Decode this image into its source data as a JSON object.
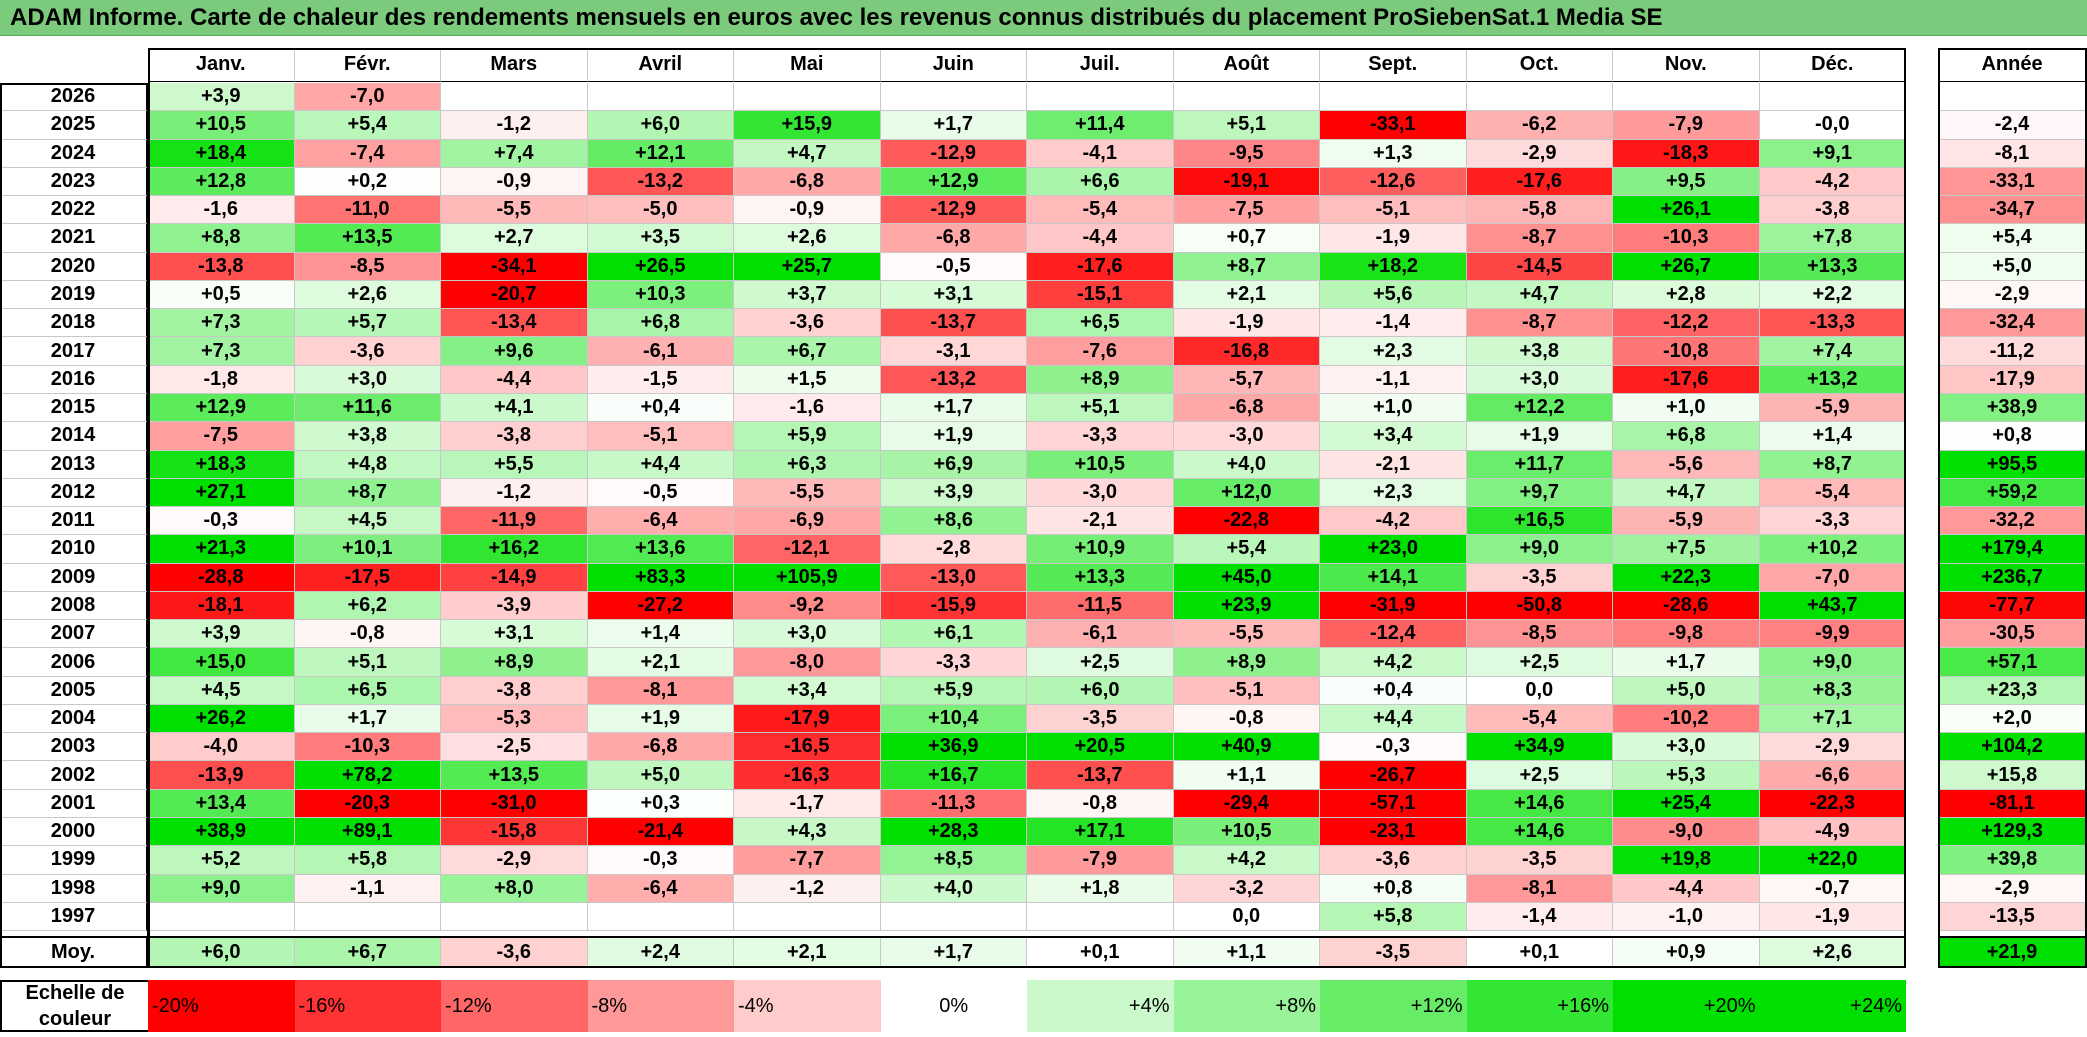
{
  "title": "ADAM Informe. Carte de chaleur des rendements mensuels en euros avec les revenus connus distribués du placement ProSiebenSat.1 Media SE",
  "chart_data": {
    "type": "heatmap",
    "title": "ADAM Informe. Carte de chaleur des rendements mensuels en euros avec les revenus connus distribués du placement ProSiebenSat.1 Media SE",
    "columns": [
      "Janv.",
      "Févr.",
      "Mars",
      "Avril",
      "Mai",
      "Juin",
      "Juil.",
      "Août",
      "Sept.",
      "Oct.",
      "Nov.",
      "Déc."
    ],
    "year_column": "Année",
    "rows": [
      {
        "year": "2026",
        "values": [
          "+3,9",
          "-7,0",
          "",
          "",
          "",
          "",
          "",
          "",
          "",
          "",
          "",
          ""
        ],
        "annual": ""
      },
      {
        "year": "2025",
        "values": [
          "+10,5",
          "+5,4",
          "-1,2",
          "+6,0",
          "+15,9",
          "+1,7",
          "+11,4",
          "+5,1",
          "-33,1",
          "-6,2",
          "-7,9",
          "-0,0"
        ],
        "annual": "-2,4"
      },
      {
        "year": "2024",
        "values": [
          "+18,4",
          "-7,4",
          "+7,4",
          "+12,1",
          "+4,7",
          "-12,9",
          "-4,1",
          "-9,5",
          "+1,3",
          "-2,9",
          "-18,3",
          "+9,1"
        ],
        "annual": "-8,1"
      },
      {
        "year": "2023",
        "values": [
          "+12,8",
          "+0,2",
          "-0,9",
          "-13,2",
          "-6,8",
          "+12,9",
          "+6,6",
          "-19,1",
          "-12,6",
          "-17,6",
          "+9,5",
          "-4,2"
        ],
        "annual": "-33,1"
      },
      {
        "year": "2022",
        "values": [
          "-1,6",
          "-11,0",
          "-5,5",
          "-5,0",
          "-0,9",
          "-12,9",
          "-5,4",
          "-7,5",
          "-5,1",
          "-5,8",
          "+26,1",
          "-3,8"
        ],
        "annual": "-34,7"
      },
      {
        "year": "2021",
        "values": [
          "+8,8",
          "+13,5",
          "+2,7",
          "+3,5",
          "+2,6",
          "-6,8",
          "-4,4",
          "+0,7",
          "-1,9",
          "-8,7",
          "-10,3",
          "+7,8"
        ],
        "annual": "+5,4"
      },
      {
        "year": "2020",
        "values": [
          "-13,8",
          "-8,5",
          "-34,1",
          "+26,5",
          "+25,7",
          "-0,5",
          "-17,6",
          "+8,7",
          "+18,2",
          "-14,5",
          "+26,7",
          "+13,3"
        ],
        "annual": "+5,0"
      },
      {
        "year": "2019",
        "values": [
          "+0,5",
          "+2,6",
          "-20,7",
          "+10,3",
          "+3,7",
          "+3,1",
          "-15,1",
          "+2,1",
          "+5,6",
          "+4,7",
          "+2,8",
          "+2,2"
        ],
        "annual": "-2,9"
      },
      {
        "year": "2018",
        "values": [
          "+7,3",
          "+5,7",
          "-13,4",
          "+6,8",
          "-3,6",
          "-13,7",
          "+6,5",
          "-1,9",
          "-1,4",
          "-8,7",
          "-12,2",
          "-13,3"
        ],
        "annual": "-32,4"
      },
      {
        "year": "2017",
        "values": [
          "+7,3",
          "-3,6",
          "+9,6",
          "-6,1",
          "+6,7",
          "-3,1",
          "-7,6",
          "-16,8",
          "+2,3",
          "+3,8",
          "-10,8",
          "+7,4"
        ],
        "annual": "-11,2"
      },
      {
        "year": "2016",
        "values": [
          "-1,8",
          "+3,0",
          "-4,4",
          "-1,5",
          "+1,5",
          "-13,2",
          "+8,9",
          "-5,7",
          "-1,1",
          "+3,0",
          "-17,6",
          "+13,2"
        ],
        "annual": "-17,9"
      },
      {
        "year": "2015",
        "values": [
          "+12,9",
          "+11,6",
          "+4,1",
          "+0,4",
          "-1,6",
          "+1,7",
          "+5,1",
          "-6,8",
          "+1,0",
          "+12,2",
          "+1,0",
          "-5,9"
        ],
        "annual": "+38,9"
      },
      {
        "year": "2014",
        "values": [
          "-7,5",
          "+3,8",
          "-3,8",
          "-5,1",
          "+5,9",
          "+1,9",
          "-3,3",
          "-3,0",
          "+3,4",
          "+1,9",
          "+6,8",
          "+1,4"
        ],
        "annual": "+0,8"
      },
      {
        "year": "2013",
        "values": [
          "+18,3",
          "+4,8",
          "+5,5",
          "+4,4",
          "+6,3",
          "+6,9",
          "+10,5",
          "+4,0",
          "-2,1",
          "+11,7",
          "-5,6",
          "+8,7"
        ],
        "annual": "+95,5"
      },
      {
        "year": "2012",
        "values": [
          "+27,1",
          "+8,7",
          "-1,2",
          "-0,5",
          "-5,5",
          "+3,9",
          "-3,0",
          "+12,0",
          "+2,3",
          "+9,7",
          "+4,7",
          "-5,4"
        ],
        "annual": "+59,2"
      },
      {
        "year": "2011",
        "values": [
          "-0,3",
          "+4,5",
          "-11,9",
          "-6,4",
          "-6,9",
          "+8,6",
          "-2,1",
          "-22,8",
          "-4,2",
          "+16,5",
          "-5,9",
          "-3,3"
        ],
        "annual": "-32,2"
      },
      {
        "year": "2010",
        "values": [
          "+21,3",
          "+10,1",
          "+16,2",
          "+13,6",
          "-12,1",
          "-2,8",
          "+10,9",
          "+5,4",
          "+23,0",
          "+9,0",
          "+7,5",
          "+10,2"
        ],
        "annual": "+179,4"
      },
      {
        "year": "2009",
        "values": [
          "-28,8",
          "-17,5",
          "-14,9",
          "+83,3",
          "+105,9",
          "-13,0",
          "+13,3",
          "+45,0",
          "+14,1",
          "-3,5",
          "+22,3",
          "-7,0"
        ],
        "annual": "+236,7"
      },
      {
        "year": "2008",
        "values": [
          "-18,1",
          "+6,2",
          "-3,9",
          "-27,2",
          "-9,2",
          "-15,9",
          "-11,5",
          "+23,9",
          "-31,9",
          "-50,8",
          "-28,6",
          "+43,7"
        ],
        "annual": "-77,7"
      },
      {
        "year": "2007",
        "values": [
          "+3,9",
          "-0,8",
          "+3,1",
          "+1,4",
          "+3,0",
          "+6,1",
          "-6,1",
          "-5,5",
          "-12,4",
          "-8,5",
          "-9,8",
          "-9,9"
        ],
        "annual": "-30,5"
      },
      {
        "year": "2006",
        "values": [
          "+15,0",
          "+5,1",
          "+8,9",
          "+2,1",
          "-8,0",
          "-3,3",
          "+2,5",
          "+8,9",
          "+4,2",
          "+2,5",
          "+1,7",
          "+9,0"
        ],
        "annual": "+57,1"
      },
      {
        "year": "2005",
        "values": [
          "+4,5",
          "+6,5",
          "-3,8",
          "-8,1",
          "+3,4",
          "+5,9",
          "+6,0",
          "-5,1",
          "+0,4",
          "0,0",
          "+5,0",
          "+8,3"
        ],
        "annual": "+23,3"
      },
      {
        "year": "2004",
        "values": [
          "+26,2",
          "+1,7",
          "-5,3",
          "+1,9",
          "-17,9",
          "+10,4",
          "-3,5",
          "-0,8",
          "+4,4",
          "-5,4",
          "-10,2",
          "+7,1"
        ],
        "annual": "+2,0"
      },
      {
        "year": "2003",
        "values": [
          "-4,0",
          "-10,3",
          "-2,5",
          "-6,8",
          "-16,5",
          "+36,9",
          "+20,5",
          "+40,9",
          "-0,3",
          "+34,9",
          "+3,0",
          "-2,9"
        ],
        "annual": "+104,2"
      },
      {
        "year": "2002",
        "values": [
          "-13,9",
          "+78,2",
          "+13,5",
          "+5,0",
          "-16,3",
          "+16,7",
          "-13,7",
          "+1,1",
          "-26,7",
          "+2,5",
          "+5,3",
          "-6,6"
        ],
        "annual": "+15,8"
      },
      {
        "year": "2001",
        "values": [
          "+13,4",
          "-20,3",
          "-31,0",
          "+0,3",
          "-1,7",
          "-11,3",
          "-0,8",
          "-29,4",
          "-57,1",
          "+14,6",
          "+25,4",
          "-22,3"
        ],
        "annual": "-81,1"
      },
      {
        "year": "2000",
        "values": [
          "+38,9",
          "+89,1",
          "-15,8",
          "-21,4",
          "+4,3",
          "+28,3",
          "+17,1",
          "+10,5",
          "-23,1",
          "+14,6",
          "-9,0",
          "-4,9"
        ],
        "annual": "+129,3"
      },
      {
        "year": "1999",
        "values": [
          "+5,2",
          "+5,8",
          "-2,9",
          "-0,3",
          "-7,7",
          "+8,5",
          "-7,9",
          "+4,2",
          "-3,6",
          "-3,5",
          "+19,8",
          "+22,0"
        ],
        "annual": "+39,8"
      },
      {
        "year": "1998",
        "values": [
          "+9,0",
          "-1,1",
          "+8,0",
          "-6,4",
          "-1,2",
          "+4,0",
          "+1,8",
          "-3,2",
          "+0,8",
          "-8,1",
          "-4,4",
          "-0,7"
        ],
        "annual": "-2,9"
      },
      {
        "year": "1997",
        "values": [
          "",
          "",
          "",
          "",
          "",
          "",
          "",
          "0,0",
          "+5,8",
          "-1,4",
          "-1,0",
          "-1,9"
        ],
        "annual": "-13,5"
      }
    ],
    "average": {
      "label": "Moy.",
      "values": [
        "+6,0",
        "+6,7",
        "-3,6",
        "+2,4",
        "+2,1",
        "+1,7",
        "+0,1",
        "+1,1",
        "-3,5",
        "+0,1",
        "+0,9",
        "+2,6"
      ],
      "annual": "+21,9"
    },
    "color_scale": {
      "label_line1": "Echelle de",
      "label_line2": "couleur",
      "stops": [
        "-20%",
        "-16%",
        "-12%",
        "-8%",
        "-4%",
        "0%",
        "+4%",
        "+8%",
        "+12%",
        "+16%",
        "+20%",
        "+24%"
      ],
      "negative_color": "#ff0000",
      "neutral_color": "#ffffff",
      "positive_color": "#00e000"
    }
  }
}
